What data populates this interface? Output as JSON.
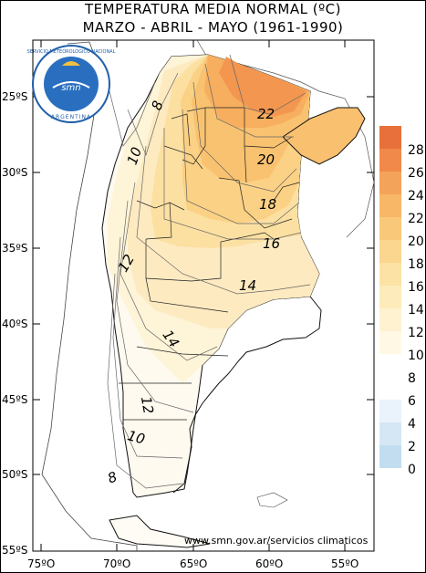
{
  "map": {
    "title_line1": "TEMPERATURA MEDIA NORMAL (ºC)",
    "title_line2": "MARZO - ABRIL - MAYO (1961-1990)",
    "source": "www.smn.gov.ar/servicios climaticos",
    "logo": {
      "arc_text": "SERVICIO METEOROLOGICO NACIONAL",
      "center_text": "smn",
      "bottom_text": "ARGENTINA"
    },
    "lat_labels": [
      "25ºS",
      "30ºS",
      "35ºS",
      "40ºS",
      "45ºS",
      "50ºS",
      "55ºS"
    ],
    "lon_labels": [
      "75ºO",
      "70ºO",
      "65ºO",
      "60ºO",
      "55ºO"
    ],
    "isotherm_labels": [
      "22",
      "20",
      "18",
      "16",
      "14",
      "12",
      "10",
      "8",
      "14",
      "12",
      "10",
      "8"
    ],
    "legend": {
      "values": [
        "28",
        "26",
        "24",
        "22",
        "20",
        "18",
        "16",
        "14",
        "12",
        "10",
        "8",
        "6",
        "4",
        "2",
        "0"
      ],
      "colors": [
        "#e8703a",
        "#f0894a",
        "#f4a35a",
        "#f7b766",
        "#f9c878",
        "#fbd68e",
        "#fce2a4",
        "#fdebbb",
        "#fef2d0",
        "#fff8e5",
        "#ffffff",
        "#ffffff",
        "#eaf3fb",
        "#d5e7f5",
        "#c2ddf0"
      ]
    }
  }
}
